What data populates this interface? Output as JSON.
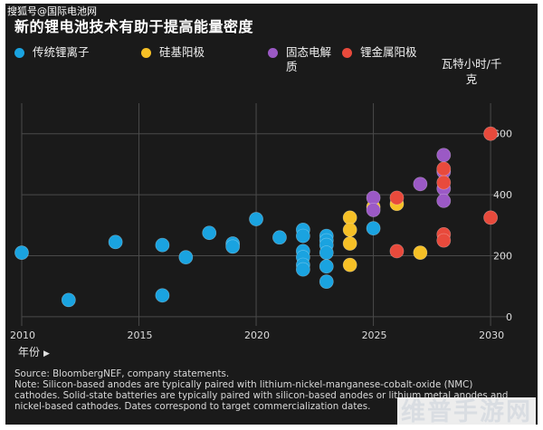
{
  "watermark_top": "搜狐号@国际电池网",
  "brand_watermark": "维普手游网",
  "chart_data": {
    "type": "scatter",
    "title": "新的锂电池技术有助于提高能量密度",
    "ylabel": "瓦特小时/千克",
    "xlabel": "年份",
    "xlim": [
      2010,
      2031
    ],
    "ylim": [
      -30,
      700
    ],
    "x_ticks": [
      2010,
      2015,
      2020,
      2025,
      2030
    ],
    "y_ticks": [
      0,
      200,
      400,
      600
    ],
    "grid": true,
    "legend_position": "top",
    "series": [
      {
        "name": "传统锂离子",
        "color": "#1aa3e0",
        "points": [
          [
            2010,
            210
          ],
          [
            2012,
            55
          ],
          [
            2014,
            245
          ],
          [
            2016,
            235
          ],
          [
            2016,
            70
          ],
          [
            2017,
            195
          ],
          [
            2018,
            275
          ],
          [
            2019,
            240
          ],
          [
            2019,
            230
          ],
          [
            2020,
            320
          ],
          [
            2021,
            260
          ],
          [
            2022,
            285
          ],
          [
            2022,
            265
          ],
          [
            2022,
            215
          ],
          [
            2022,
            195
          ],
          [
            2022,
            170
          ],
          [
            2022,
            155
          ],
          [
            2023,
            265
          ],
          [
            2023,
            250
          ],
          [
            2023,
            235
          ],
          [
            2023,
            210
          ],
          [
            2023,
            165
          ],
          [
            2023,
            115
          ],
          [
            2025,
            290
          ]
        ]
      },
      {
        "name": "硅基阳极",
        "color": "#f6c026",
        "points": [
          [
            2024,
            325
          ],
          [
            2024,
            285
          ],
          [
            2024,
            240
          ],
          [
            2024,
            170
          ],
          [
            2025,
            360
          ],
          [
            2026,
            370
          ],
          [
            2027,
            210
          ]
        ]
      },
      {
        "name": "固态电解质",
        "color": "#9b59c5",
        "points": [
          [
            2025,
            390
          ],
          [
            2025,
            350
          ],
          [
            2027,
            435
          ],
          [
            2028,
            530
          ],
          [
            2028,
            475
          ],
          [
            2028,
            420
          ],
          [
            2028,
            380
          ]
        ]
      },
      {
        "name": "锂金属阳极",
        "color": "#e84a3c",
        "points": [
          [
            2026,
            390
          ],
          [
            2026,
            215
          ],
          [
            2028,
            485
          ],
          [
            2028,
            440
          ],
          [
            2028,
            270
          ],
          [
            2028,
            250
          ],
          [
            2030,
            600
          ],
          [
            2030,
            325
          ]
        ]
      }
    ],
    "notes": "Source: BloombergNEF, company statements.\nNote: Silicon-based anodes are typically paired with lithium-nickel-manganese-cobalt-oxide (NMC) cathodes. Solid-state batteries are typically paired with silicon-based anodes or lithium metal anodes and nickel-based cathodes. Dates correspond to target commercialization dates."
  }
}
